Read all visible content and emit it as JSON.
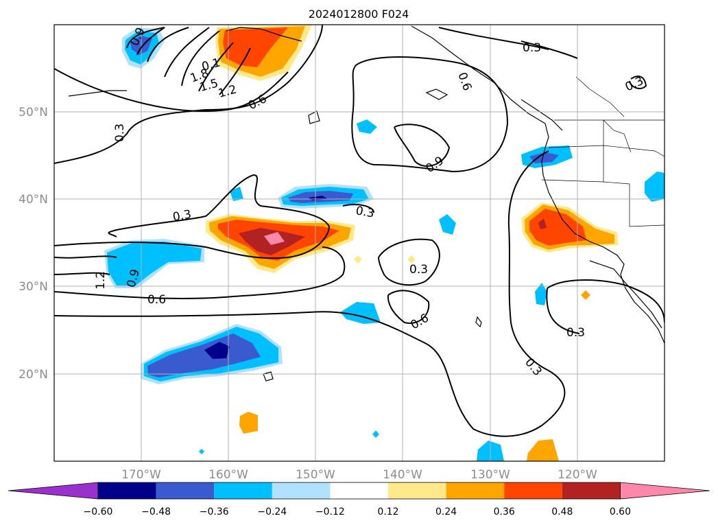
{
  "title": "2024012800 F024",
  "map": {
    "lon_range": [
      -180,
      -110
    ],
    "lat_range": [
      10,
      60
    ],
    "latitudes": [
      {
        "value": 50,
        "label": "50°N"
      },
      {
        "value": 40,
        "label": "40°N"
      },
      {
        "value": 30,
        "label": "30°N"
      },
      {
        "value": 20,
        "label": "20°N"
      }
    ],
    "longitudes": [
      {
        "value": -170,
        "label": "170°W"
      },
      {
        "value": -160,
        "label": "160°W"
      },
      {
        "value": -150,
        "label": "150°W"
      },
      {
        "value": -140,
        "label": "140°W"
      },
      {
        "value": -130,
        "label": "130°W"
      },
      {
        "value": -120,
        "label": "120°W"
      }
    ],
    "contour_labels": [
      "0.9",
      "1.8",
      "1.5",
      "1.2",
      "0.6",
      "0.3",
      "0.3",
      "0.6",
      "0.9",
      "0.3",
      "0.3",
      "0.3",
      "0.9",
      "1.2",
      "0.6",
      "0.3",
      "0.6",
      "0.3",
      "0.3",
      "0.1"
    ]
  },
  "colorbar": {
    "ticks": [
      "−0.60",
      "−0.48",
      "−0.36",
      "−0.24",
      "−0.12",
      "0.12",
      "0.24",
      "0.36",
      "0.48",
      "0.60"
    ],
    "colors": [
      "#9932cc",
      "#00008b",
      "#3a5bd0",
      "#00bfff",
      "#b0e2ff",
      "#ffffff",
      "#ffe98a",
      "#ffa500",
      "#ff4500",
      "#b22222",
      "#ff88aa"
    ]
  }
}
